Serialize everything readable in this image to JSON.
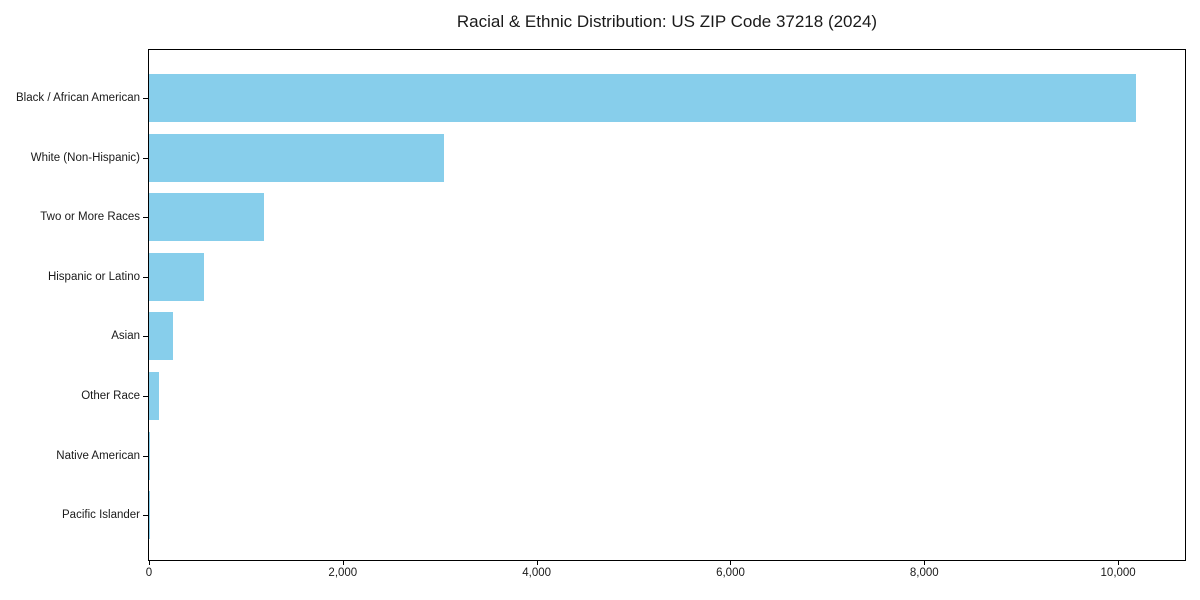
{
  "chart_data": {
    "type": "bar",
    "orientation": "horizontal",
    "title": "Racial & Ethnic Distribution: US ZIP Code 37218 (2024)",
    "categories": [
      "Black / African American",
      "White (Non-Hispanic)",
      "Two or More Races",
      "Hispanic or Latino",
      "Asian",
      "Other Race",
      "Native American",
      "Pacific Islander"
    ],
    "values": [
      10185,
      3040,
      1185,
      565,
      250,
      100,
      15,
      5
    ],
    "xlim": [
      0,
      10690
    ],
    "xticks": [
      0,
      2000,
      4000,
      6000,
      8000,
      10000
    ],
    "xtick_labels": [
      "0",
      "2,000",
      "4,000",
      "6,000",
      "8,000",
      "10,000"
    ],
    "xlabel": "",
    "ylabel": "",
    "grid": false,
    "legend": null,
    "bar_color": "#87CEEB",
    "axis_color": "#000000",
    "text_color": "#1a1a1a",
    "background_color": "#ffffff"
  }
}
